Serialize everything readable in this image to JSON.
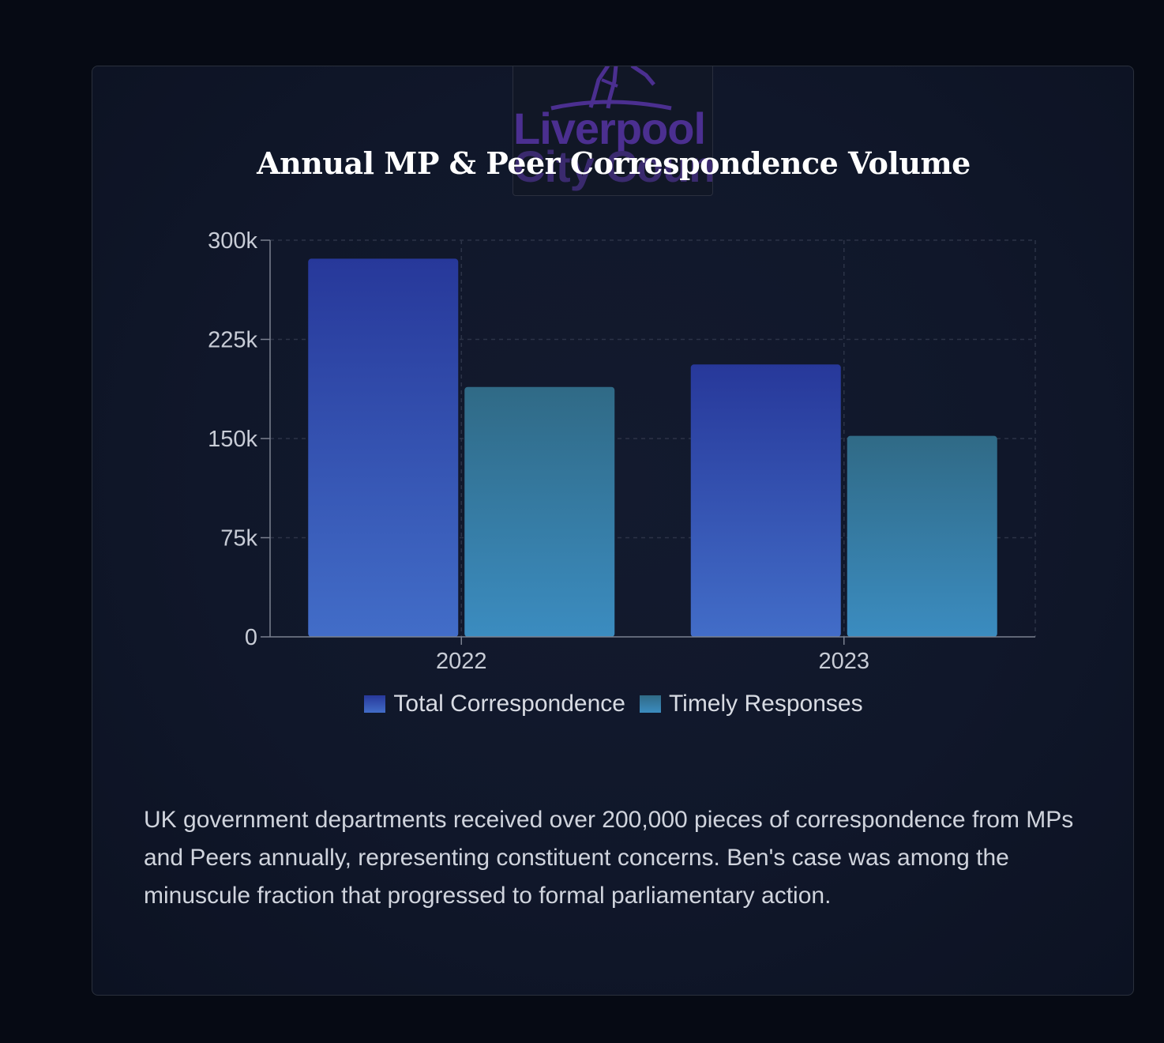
{
  "logo": {
    "line1": "Liverpool",
    "line2": "City Council",
    "icon": "liver-bird-icon"
  },
  "chart_data": {
    "type": "bar",
    "title": "Annual MP & Peer Correspondence Volume",
    "categories": [
      "2022",
      "2023"
    ],
    "series": [
      {
        "name": "Total Correspondence",
        "values": [
          286000,
          206000
        ],
        "color_top": "#27389a",
        "color_bottom": "#426dc8"
      },
      {
        "name": "Timely Responses",
        "values": [
          189000,
          152000
        ],
        "color_top": "#306a86",
        "color_bottom": "#3b8cc0"
      }
    ],
    "y_ticks": [
      0,
      75000,
      150000,
      225000,
      300000
    ],
    "y_tick_labels": [
      "0",
      "75k",
      "150k",
      "225k",
      "300k"
    ],
    "ylim": [
      0,
      300000
    ],
    "grid": true,
    "legend_position": "bottom"
  },
  "description": "UK government departments received over 200,000 pieces of correspondence from MPs and Peers annually, representing constituent concerns. Ben's case was among the minuscule fraction that progressed to formal parliamentary action."
}
